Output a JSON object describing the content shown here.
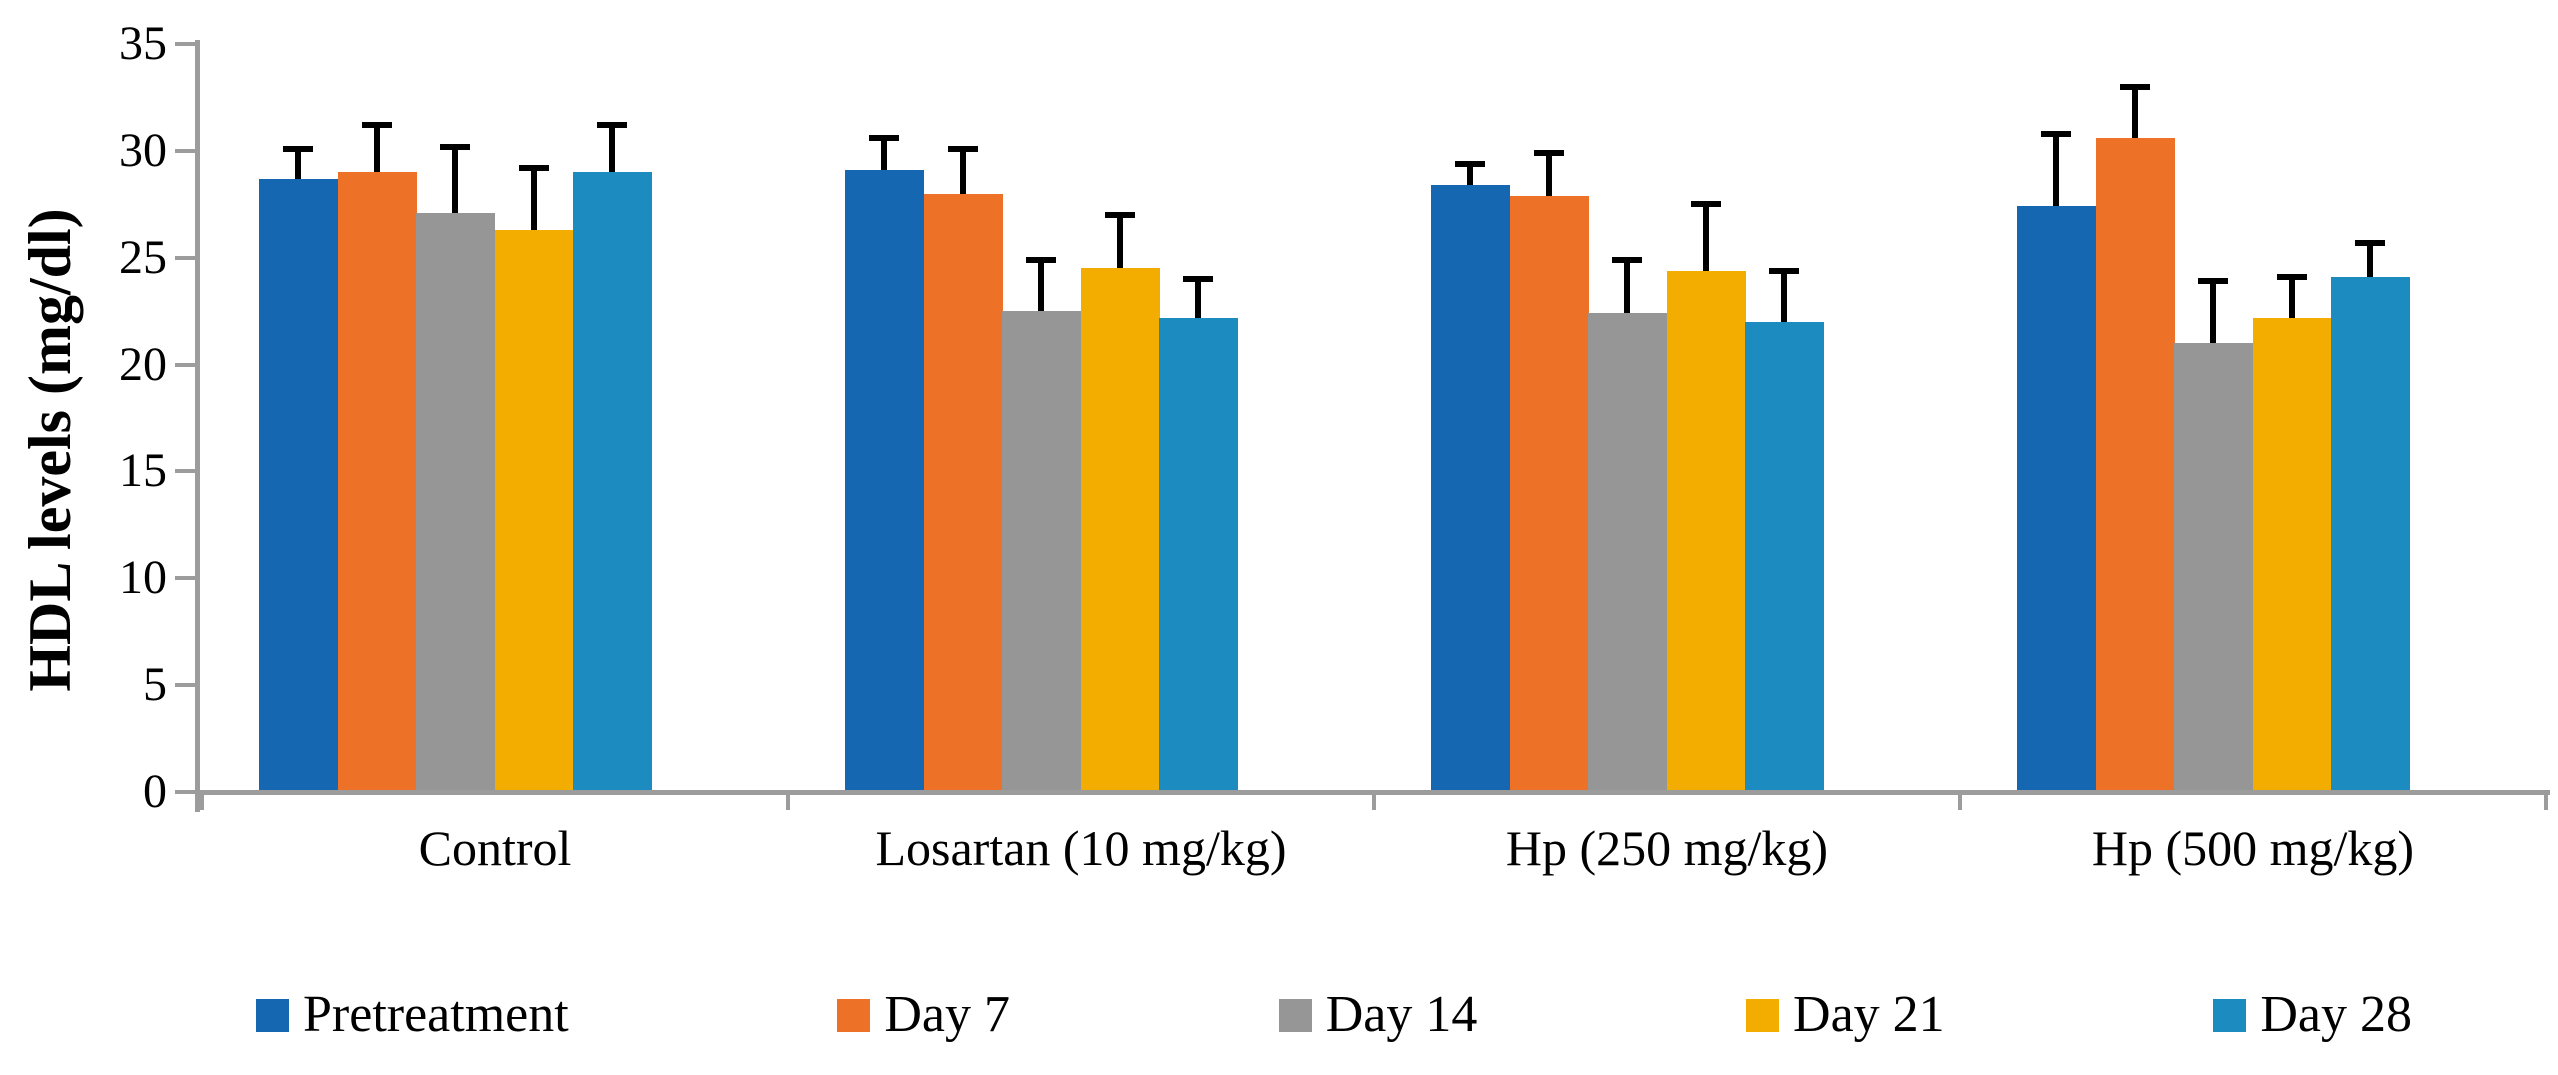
{
  "chart_data": {
    "type": "bar",
    "title": "",
    "ylabel": "HDL levels (mg/dl)",
    "xlabel": "",
    "ylim": [
      0,
      35
    ],
    "yticks": [
      0,
      5,
      10,
      15,
      20,
      25,
      30,
      35
    ],
    "grid": false,
    "legend_position": "bottom",
    "error_bars": "upper only, black",
    "categories": [
      "Control",
      "Losartan (10 mg/kg)",
      "Hp (250 mg/kg)",
      "Hp (500 mg/kg)"
    ],
    "series": [
      {
        "name": "Pretreatment",
        "color": "#1567B1",
        "values": [
          28.7,
          29.1,
          28.4,
          27.4
        ],
        "errors_up": [
          1.4,
          1.5,
          1.0,
          3.4
        ]
      },
      {
        "name": "Day 7",
        "color": "#ED7227",
        "values": [
          29.0,
          28.0,
          27.9,
          30.6
        ],
        "errors_up": [
          2.2,
          2.1,
          2.0,
          2.4
        ]
      },
      {
        "name": "Day 14",
        "color": "#969696",
        "values": [
          27.1,
          22.5,
          22.4,
          21.0
        ],
        "errors_up": [
          3.1,
          2.4,
          2.5,
          2.9
        ]
      },
      {
        "name": "Day 21",
        "color": "#F3AD00",
        "values": [
          26.3,
          24.5,
          24.4,
          22.2
        ],
        "errors_up": [
          2.9,
          2.5,
          3.1,
          1.9
        ]
      },
      {
        "name": "Day 28",
        "color": "#1C8BC0",
        "values": [
          29.0,
          22.2,
          22.0,
          24.1
        ],
        "errors_up": [
          2.2,
          1.8,
          2.4,
          1.6
        ]
      }
    ],
    "axis_color": "#9C9C9C",
    "error_bar_color": "#000000",
    "text_color": "#000000",
    "background_color": "#FFFFFF"
  }
}
